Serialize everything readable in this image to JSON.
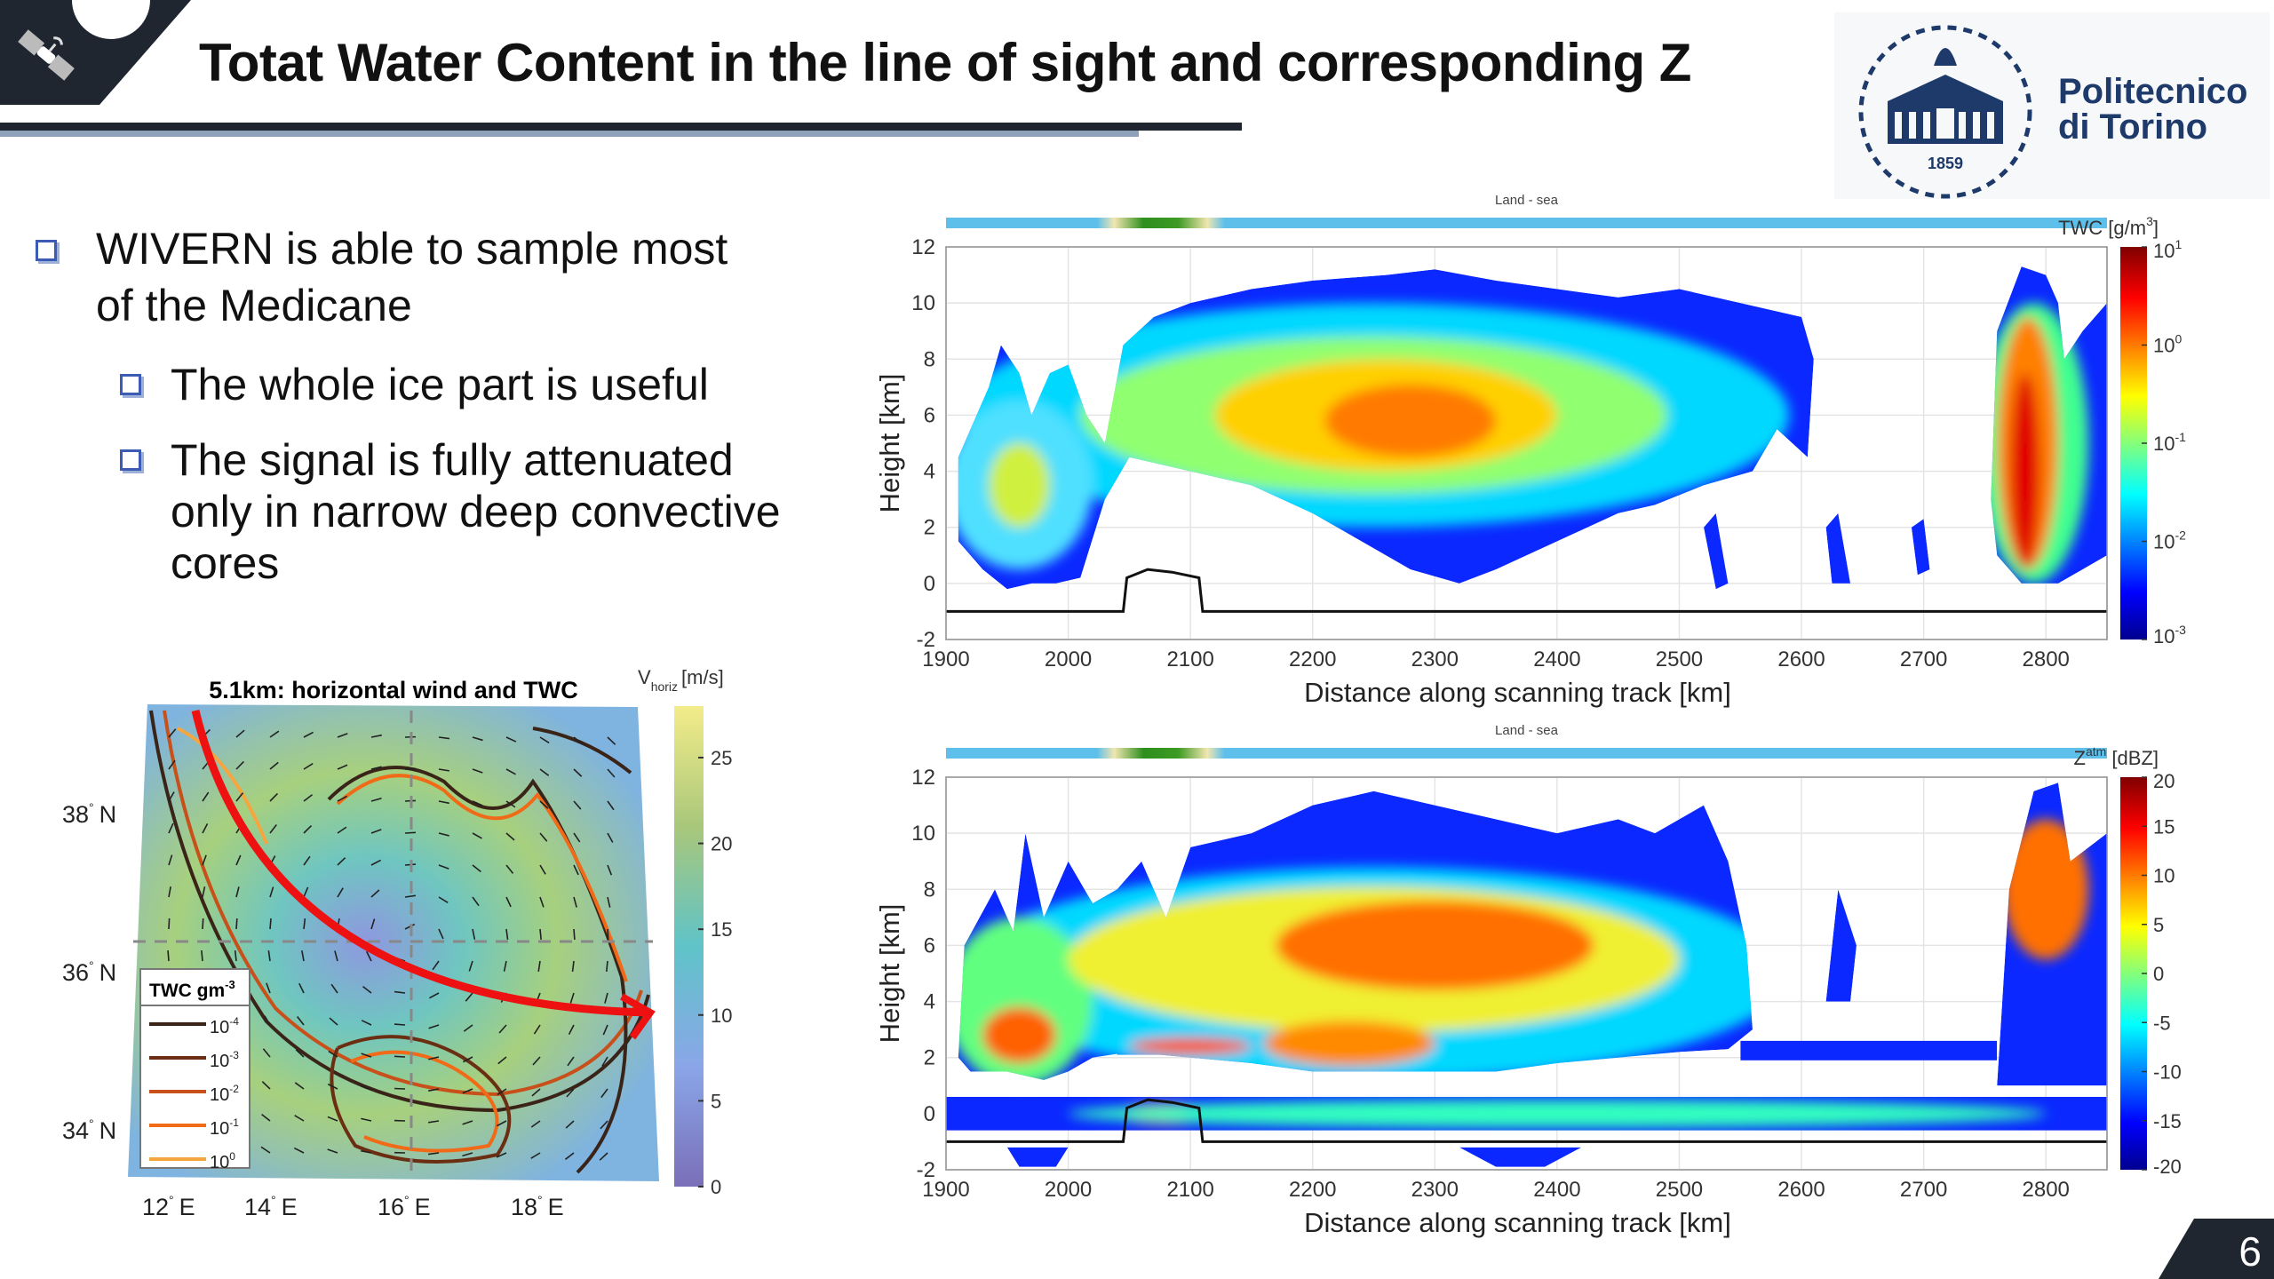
{
  "header": {
    "title": "Totat Water Content in the line of sight and corresponding Z",
    "icon": "satellite-icon",
    "logo": {
      "text_line1": "Politecnico",
      "text_line2": "di Torino",
      "year": "1859"
    }
  },
  "bullets": [
    {
      "level": 1,
      "lines": [
        "WIVERN is able to sample most",
        "of the Medicane"
      ]
    },
    {
      "level": 2,
      "lines": [
        "The whole ice part is useful"
      ]
    },
    {
      "level": 2,
      "lines": [
        "The signal is fully attenuated",
        "only in narrow deep convective",
        "cores"
      ]
    }
  ],
  "page_number": "6",
  "colors": {
    "header_dark": "#1f2630",
    "bullet_blue": "#3b5bb5",
    "arrow_red": "#ee1111"
  },
  "chart_data": [
    {
      "type": "heatmap",
      "title": "5.1km: horizontal wind and TWC",
      "colorbar_label": {
        "base": "V",
        "sub": "horiz",
        "unit": "[m/s]"
      },
      "colorbar_ticks": [
        "0",
        "5",
        "10",
        "15",
        "20",
        "25"
      ],
      "colorbar_range": [
        0,
        28
      ],
      "lat_ticks": [
        "38",
        "36",
        "34"
      ],
      "lat_suffix": "N",
      "lon_ticks": [
        "12",
        "14",
        "16",
        "18"
      ],
      "lon_suffix": "E",
      "legend": {
        "title": "TWC gm",
        "title_exp": "-3",
        "entries": [
          {
            "base": "10",
            "exp": "-4",
            "color": "#3a2418"
          },
          {
            "base": "10",
            "exp": "-3",
            "color": "#6b2e12"
          },
          {
            "base": "10",
            "exp": "-2",
            "color": "#c8501a"
          },
          {
            "base": "10",
            "exp": "-1",
            "color": "#f06a18"
          },
          {
            "base": "10",
            "exp": "0",
            "color": "#f6a640"
          }
        ]
      }
    },
    {
      "type": "heatmap",
      "strip_label": "Land - sea",
      "xlabel": "Distance along scanning track [km]",
      "ylabel": "Height [km]",
      "xlim": [
        1900,
        2850
      ],
      "ylim": [
        -2,
        12
      ],
      "xticks": [
        "1900",
        "2000",
        "2100",
        "2200",
        "2300",
        "2400",
        "2500",
        "2600",
        "2700",
        "2800"
      ],
      "yticks": [
        "-2",
        "0",
        "2",
        "4",
        "6",
        "8",
        "10",
        "12"
      ],
      "colorbar_label": "TWC [g/m",
      "colorbar_label_exp": "3",
      "colorbar_label_end": "]",
      "colorbar_scale": "log",
      "colorbar_ticks": [
        {
          "base": "10",
          "exp": "1"
        },
        {
          "base": "10",
          "exp": "0"
        },
        {
          "base": "10",
          "exp": "-1"
        },
        {
          "base": "10",
          "exp": "-2"
        },
        {
          "base": "10",
          "exp": "-3"
        }
      ],
      "surface_km": -1,
      "land_segment_km": [
        2045,
        2110
      ]
    },
    {
      "type": "heatmap",
      "strip_label": "Land - sea",
      "xlabel": "Distance along scanning track [km]",
      "ylabel": "Height [km]",
      "xlim": [
        1900,
        2850
      ],
      "ylim": [
        -2,
        12
      ],
      "xticks": [
        "1900",
        "2000",
        "2100",
        "2200",
        "2300",
        "2400",
        "2500",
        "2600",
        "2700",
        "2800"
      ],
      "yticks": [
        "-2",
        "0",
        "2",
        "4",
        "6",
        "8",
        "10",
        "12"
      ],
      "colorbar_label": "Z",
      "colorbar_label_exp": "atm",
      "colorbar_label_end": " [dBZ]",
      "colorbar_ticks": [
        "20",
        "15",
        "10",
        "5",
        "0",
        "-5",
        "-10",
        "-15",
        "-20"
      ],
      "colorbar_range": [
        -20,
        20
      ],
      "surface_km": -1,
      "land_segment_km": [
        2045,
        2110
      ]
    }
  ]
}
